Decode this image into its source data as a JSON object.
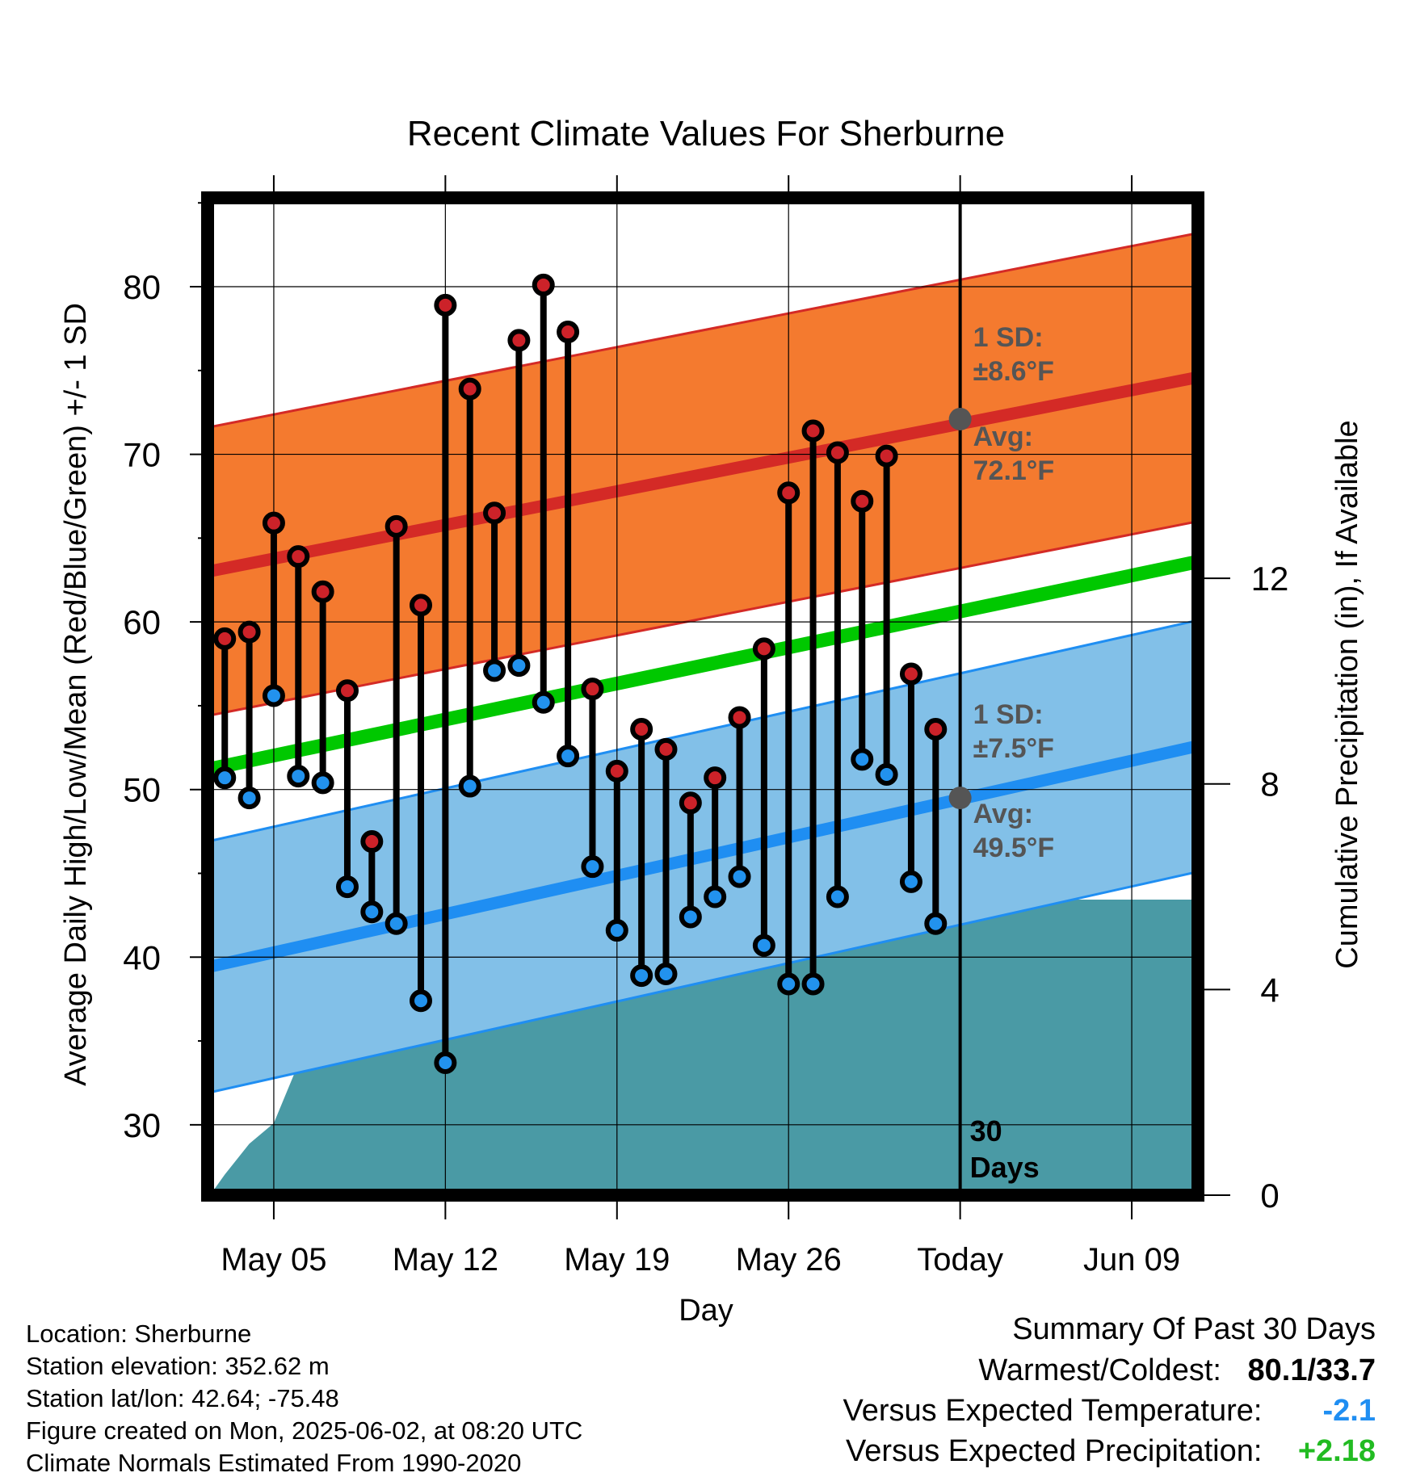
{
  "chart_data": {
    "type": "line",
    "title": "Recent Climate Values For Sherburne",
    "xlabel": "Day",
    "ylabel": "Average Daily High/Low/Mean (Red/Blue/Green) +/- 1 SD",
    "y2label": "Cumulative Precipitation (in), If Available",
    "x_ticks": [
      "May 05",
      "May 12",
      "May 19",
      "May 26",
      "Today",
      "Jun 09"
    ],
    "x_tick_day": [
      5,
      12,
      19,
      26,
      33,
      40
    ],
    "xlim": [
      2.3,
      42.7
    ],
    "ylim": [
      25.8,
      85.3
    ],
    "y_ticks": [
      30,
      40,
      50,
      60,
      70,
      80
    ],
    "y2lim": [
      0,
      19.4
    ],
    "y2_ticks": [
      0,
      4,
      8,
      12
    ],
    "today_day": 33,
    "today_marker": "30\nDays",
    "days": [
      3,
      4,
      5,
      6,
      7,
      8,
      9,
      10,
      11,
      12,
      13,
      14,
      15,
      16,
      17,
      18,
      19,
      20,
      21,
      22,
      23,
      24,
      25,
      26,
      27,
      28,
      29,
      30,
      31,
      32
    ],
    "high": [
      59.0,
      59.4,
      65.9,
      63.9,
      61.8,
      55.9,
      46.9,
      65.7,
      61.0,
      78.9,
      73.9,
      66.5,
      76.8,
      80.1,
      77.3,
      56.0,
      51.1,
      53.6,
      52.4,
      49.2,
      50.7,
      54.3,
      58.4,
      67.7,
      71.4,
      70.1,
      67.2,
      69.9,
      56.9,
      53.6
    ],
    "low": [
      50.7,
      49.5,
      55.6,
      50.8,
      50.4,
      44.2,
      42.7,
      42.0,
      37.4,
      33.7,
      50.2,
      57.1,
      57.4,
      55.2,
      52.0,
      45.4,
      41.6,
      38.9,
      39.0,
      42.4,
      43.6,
      44.8,
      40.7,
      38.4,
      38.4,
      43.6,
      51.8,
      50.9,
      44.5,
      42.0
    ],
    "normals": {
      "high_avg_start": 63.0,
      "high_avg_end": 74.6,
      "high_sd": 8.6,
      "low_avg_start": 39.4,
      "low_avg_end": 52.6,
      "low_sd": 7.5,
      "mean_start": 51.2,
      "mean_end": 63.6
    },
    "precip_cum": [
      [
        2.4,
        0
      ],
      [
        3,
        0.4
      ],
      [
        4,
        1.0
      ],
      [
        5,
        1.4
      ],
      [
        6,
        2.55
      ],
      [
        7,
        2.6
      ],
      [
        8,
        2.6
      ],
      [
        9,
        3.35
      ],
      [
        10,
        3.35
      ],
      [
        11,
        3.35
      ],
      [
        12,
        3.35
      ],
      [
        13,
        3.35
      ],
      [
        14,
        3.4
      ],
      [
        15,
        3.4
      ],
      [
        16,
        4.2
      ],
      [
        17,
        4.4
      ],
      [
        18,
        4.4
      ],
      [
        19,
        4.4
      ],
      [
        20,
        4.4
      ],
      [
        21,
        4.65
      ],
      [
        22,
        4.95
      ],
      [
        23,
        5.2
      ],
      [
        24,
        5.35
      ],
      [
        25,
        5.35
      ],
      [
        26,
        5.35
      ],
      [
        27,
        5.35
      ],
      [
        28,
        5.35
      ],
      [
        29,
        5.35
      ],
      [
        30,
        5.4
      ],
      [
        31,
        5.75
      ],
      [
        32,
        5.75
      ],
      [
        33,
        5.75
      ],
      [
        42.7,
        5.75
      ]
    ],
    "colors": {
      "high_band": "#f47a2f",
      "high_line": "#d42a26",
      "low_band": "#82c0e8",
      "low_line": "#1f8ef2",
      "mean_line": "#00c800",
      "precip": "#4a9aa5",
      "high_dot": "#cc2229",
      "low_dot": "#2292ee",
      "annotation": "#555555",
      "avg_marker": "#555555"
    },
    "annotations": {
      "high_sd_label": "1 SD:",
      "high_sd_value": "±8.6°F",
      "high_avg_label": "Avg:",
      "high_avg_value": "72.1°F",
      "low_sd_label": "1 SD:",
      "low_sd_value": "±7.5°F",
      "low_avg_label": "Avg:",
      "low_avg_value": "49.5°F",
      "high_avg_point": 72.1,
      "low_avg_point": 49.5
    }
  },
  "info": {
    "location": "Location: Sherburne",
    "elevation": "Station elevation: 352.62 m",
    "latlon": "Station lat/lon: 42.64; -75.48",
    "created": "Figure created on Mon, 2025-06-02, at 08:20 UTC",
    "normals": "Climate Normals Estimated From 1990-2020"
  },
  "summary": {
    "title": "Summary Of Past 30 Days",
    "warm_cold_label": "Warmest/Coldest:",
    "warm_cold_value": "80.1/33.7",
    "temp_label": "Versus Expected Temperature:",
    "temp_value": "-2.1",
    "temp_color": "#1f8ef2",
    "precip_label": "Versus Expected Precipitation:",
    "precip_value": "+2.18",
    "precip_color": "#22bb22"
  }
}
